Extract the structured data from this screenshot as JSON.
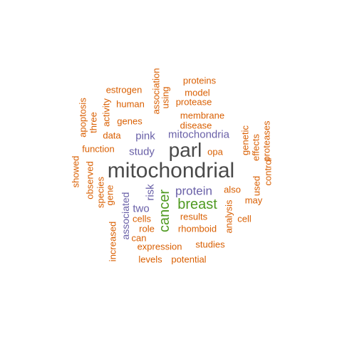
{
  "colors": {
    "orange": "#d95f02",
    "purple": "#6a61a8",
    "green": "#4f9a21",
    "gray": "#4a4a4a"
  },
  "words": [
    {
      "text": "mitochondrial",
      "color": "gray"
    },
    {
      "text": "parl",
      "color": "gray"
    },
    {
      "text": "breast",
      "color": "green"
    },
    {
      "text": "cancer",
      "color": "green"
    },
    {
      "text": "protein",
      "color": "purple"
    },
    {
      "text": "mitochondria",
      "color": "purple"
    },
    {
      "text": "study",
      "color": "purple"
    },
    {
      "text": "pink",
      "color": "purple"
    },
    {
      "text": "two",
      "color": "purple"
    },
    {
      "text": "risk",
      "color": "purple"
    },
    {
      "text": "associated",
      "color": "purple"
    },
    {
      "text": "proteins",
      "color": "orange"
    },
    {
      "text": "model",
      "color": "orange"
    },
    {
      "text": "estrogen",
      "color": "orange"
    },
    {
      "text": "association",
      "color": "orange"
    },
    {
      "text": "using",
      "color": "orange"
    },
    {
      "text": "protease",
      "color": "orange"
    },
    {
      "text": "human",
      "color": "orange"
    },
    {
      "text": "genes",
      "color": "orange"
    },
    {
      "text": "membrane",
      "color": "orange"
    },
    {
      "text": "disease",
      "color": "orange"
    },
    {
      "text": "apoptosis",
      "color": "orange"
    },
    {
      "text": "three",
      "color": "orange"
    },
    {
      "text": "activity",
      "color": "orange"
    },
    {
      "text": "data",
      "color": "orange"
    },
    {
      "text": "function",
      "color": "orange"
    },
    {
      "text": "genetic",
      "color": "orange"
    },
    {
      "text": "proteases",
      "color": "orange"
    },
    {
      "text": "opa",
      "color": "orange"
    },
    {
      "text": "effects",
      "color": "orange"
    },
    {
      "text": "showed",
      "color": "orange"
    },
    {
      "text": "observed",
      "color": "orange"
    },
    {
      "text": "species",
      "color": "orange"
    },
    {
      "text": "gene",
      "color": "orange"
    },
    {
      "text": "also",
      "color": "orange"
    },
    {
      "text": "used",
      "color": "orange"
    },
    {
      "text": "control",
      "color": "orange"
    },
    {
      "text": "may",
      "color": "orange"
    },
    {
      "text": "cells",
      "color": "orange"
    },
    {
      "text": "results",
      "color": "orange"
    },
    {
      "text": "analysis",
      "color": "orange"
    },
    {
      "text": "cell",
      "color": "orange"
    },
    {
      "text": "role",
      "color": "orange"
    },
    {
      "text": "rhomboid",
      "color": "orange"
    },
    {
      "text": "increased",
      "color": "orange"
    },
    {
      "text": "can",
      "color": "orange"
    },
    {
      "text": "expression",
      "color": "orange"
    },
    {
      "text": "studies",
      "color": "orange"
    },
    {
      "text": "levels",
      "color": "orange"
    },
    {
      "text": "potential",
      "color": "orange"
    }
  ]
}
